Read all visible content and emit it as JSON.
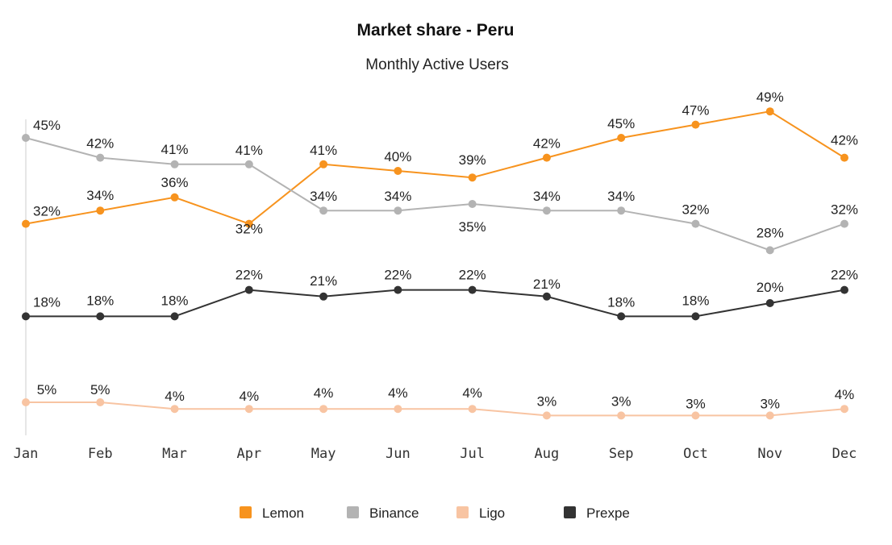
{
  "chart_data": {
    "type": "line",
    "title": "Market share - Peru",
    "subtitle": "Monthly Active Users",
    "xlabel": "",
    "ylabel": "",
    "ylim": [
      0,
      55
    ],
    "grid": false,
    "legend_position": "bottom",
    "categories": [
      "Jan",
      "Feb",
      "Mar",
      "Apr",
      "May",
      "Jun",
      "Jul",
      "Aug",
      "Sep",
      "Oct",
      "Nov",
      "Dec"
    ],
    "series": [
      {
        "name": "Lemon",
        "color": "#F7931E",
        "values": [
          32,
          34,
          36,
          32,
          41,
          40,
          39,
          42,
          45,
          47,
          49,
          42
        ],
        "labels": [
          "32%",
          "34%",
          "36%",
          "32%",
          "41%",
          "40%",
          "39%",
          "42%",
          "45%",
          "47%",
          "49%",
          "42%"
        ]
      },
      {
        "name": "Binance",
        "color": "#B3B3B3",
        "values": [
          45,
          42,
          41,
          41,
          34,
          34,
          35,
          34,
          34,
          32,
          28,
          32
        ],
        "labels": [
          "45%",
          "42%",
          "41%",
          "41%",
          "34%",
          "34%",
          "35%",
          "34%",
          "34%",
          "32%",
          "28%",
          "32%"
        ]
      },
      {
        "name": "Ligo",
        "color": "#F8C4A2",
        "values": [
          5,
          5,
          4,
          4,
          4,
          4,
          4,
          3,
          3,
          3,
          3,
          4
        ],
        "labels": [
          "5%",
          "5%",
          "4%",
          "4%",
          "4%",
          "4%",
          "4%",
          "3%",
          "3%",
          "3%",
          "3%",
          "4%"
        ]
      },
      {
        "name": "Prexpe",
        "color": "#333333",
        "values": [
          18,
          18,
          18,
          22,
          21,
          22,
          22,
          21,
          18,
          18,
          20,
          22
        ],
        "labels": [
          "18%",
          "18%",
          "18%",
          "22%",
          "21%",
          "22%",
          "22%",
          "21%",
          "18%",
          "18%",
          "20%",
          "22%"
        ]
      }
    ],
    "legend": [
      "Lemon",
      "Binance",
      "Ligo",
      "Prexpe"
    ]
  }
}
